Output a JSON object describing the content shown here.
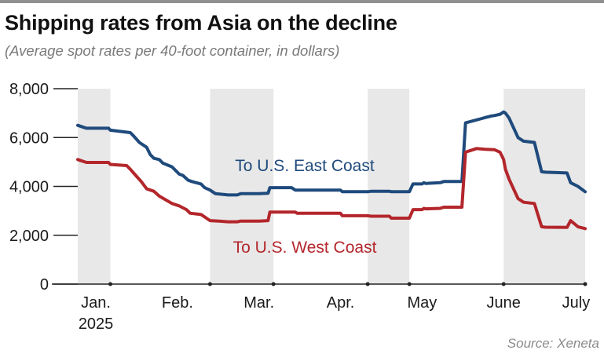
{
  "header": {
    "title": "Shipping rates from Asia on the decline",
    "subtitle": "(Average spot rates per 40-foot container, in dollars)"
  },
  "footer": {
    "source": "Source: Xeneta"
  },
  "colors": {
    "east": "#1f4a7c",
    "west": "#b3262b",
    "band": "#e8e8e8",
    "axis": "#222222"
  },
  "chart_data": {
    "type": "line",
    "title": "Shipping rates from Asia on the decline",
    "subtitle": "(Average spot rates per 40-foot container, in dollars)",
    "xlabel": "",
    "ylabel": "",
    "ylim": [
      0,
      8000
    ],
    "yticks": [
      0,
      2000,
      4000,
      6000,
      8000
    ],
    "ytick_labels": [
      "0",
      "2,000",
      "4,000",
      "6,000",
      "8,000"
    ],
    "xlim": [
      0,
      28
    ],
    "month_labels": [
      {
        "label": "Jan.",
        "center": 1.0
      },
      {
        "label": "Feb.",
        "center": 5.5
      },
      {
        "label": "Mar.",
        "center": 10.0
      },
      {
        "label": "Apr.",
        "center": 14.5
      },
      {
        "label": "May",
        "center": 19.0
      },
      {
        "label": "June",
        "center": 23.5
      },
      {
        "label": "July",
        "center": 27.5
      }
    ],
    "year_label": "2025",
    "shaded_week_ranges": [
      [
        0,
        1.8
      ],
      [
        7.3,
        10.8
      ],
      [
        16.0,
        18.3
      ],
      [
        23.5,
        28.0
      ]
    ],
    "tick_positions": [
      1.8,
      7.3,
      10.8,
      16.0,
      18.3,
      23.5,
      28.0
    ],
    "x_unit": "weeks since start of Jan. 2025",
    "series": [
      {
        "name": "To U.S. East Coast",
        "x": [
          0,
          0.4,
          0.5,
          1.7,
          1.8,
          2.9,
          3.1,
          3.4,
          3.8,
          4.0,
          4.2,
          4.5,
          4.7,
          5.2,
          5.6,
          5.8,
          6.1,
          6.3,
          6.8,
          7.0,
          7.3,
          7.6,
          8.3,
          8.8,
          9.0,
          10.0,
          10.5,
          10.6,
          10.8,
          11.8,
          12.0,
          14.5,
          14.6,
          16.0,
          16.2,
          17.2,
          17.3,
          18.3,
          18.5,
          19.0,
          19.1,
          19.2,
          20.0,
          20.2,
          21.2,
          21.4,
          21.8,
          22.0,
          22.3,
          22.5,
          22.8,
          23.0,
          23.3,
          23.5,
          23.6,
          23.8,
          24.3,
          24.6,
          25.2,
          25.6,
          25.8,
          27.0,
          27.2,
          27.6,
          28.0
        ],
        "values": [
          6500,
          6400,
          6380,
          6380,
          6300,
          6200,
          6050,
          5800,
          5600,
          5300,
          5150,
          5100,
          4950,
          4800,
          4500,
          4450,
          4250,
          4200,
          4100,
          3950,
          3850,
          3700,
          3650,
          3650,
          3700,
          3700,
          3720,
          3950,
          3950,
          3950,
          3850,
          3850,
          3780,
          3780,
          3800,
          3800,
          3780,
          3780,
          4100,
          4100,
          4150,
          4120,
          4150,
          4200,
          4200,
          6600,
          6680,
          6720,
          6780,
          6820,
          6880,
          6900,
          6950,
          7050,
          7000,
          6800,
          6000,
          5850,
          5800,
          4600,
          4580,
          4550,
          4150,
          4000,
          3780
        ]
      },
      {
        "name": "To U.S. West Coast",
        "x": [
          0,
          0.4,
          0.5,
          1.7,
          1.8,
          2.7,
          2.9,
          3.2,
          3.5,
          3.8,
          4.2,
          4.5,
          5.2,
          5.6,
          6.0,
          6.2,
          6.8,
          7.0,
          7.3,
          7.8,
          8.3,
          8.8,
          9.0,
          10.0,
          10.5,
          10.6,
          10.8,
          12.0,
          12.1,
          14.5,
          14.6,
          16.0,
          16.2,
          17.2,
          17.3,
          18.3,
          18.5,
          19.0,
          19.1,
          19.2,
          20.0,
          20.2,
          21.2,
          21.4,
          21.8,
          22.0,
          22.5,
          23.0,
          23.3,
          23.5,
          23.6,
          23.8,
          24.3,
          24.6,
          25.2,
          25.6,
          25.8,
          27.0,
          27.2,
          27.6,
          28.0
        ],
        "values": [
          5100,
          5000,
          4980,
          4980,
          4900,
          4850,
          4700,
          4450,
          4200,
          3900,
          3800,
          3600,
          3300,
          3200,
          3050,
          2900,
          2850,
          2750,
          2600,
          2580,
          2550,
          2550,
          2580,
          2580,
          2600,
          2950,
          2950,
          2950,
          2900,
          2900,
          2800,
          2800,
          2780,
          2780,
          2700,
          2700,
          3050,
          3050,
          3100,
          3080,
          3100,
          3150,
          3150,
          5400,
          5500,
          5550,
          5520,
          5500,
          5400,
          5100,
          4700,
          4300,
          3500,
          3350,
          3300,
          2350,
          2330,
          2320,
          2600,
          2350,
          2270
        ]
      }
    ],
    "annotations": [
      {
        "text": "To U.S. East Coast",
        "series": "To U.S. East Coast"
      },
      {
        "text": "To U.S. West Coast",
        "series": "To U.S. West Coast"
      }
    ],
    "grid": false,
    "legend": "none (direct labels)"
  }
}
